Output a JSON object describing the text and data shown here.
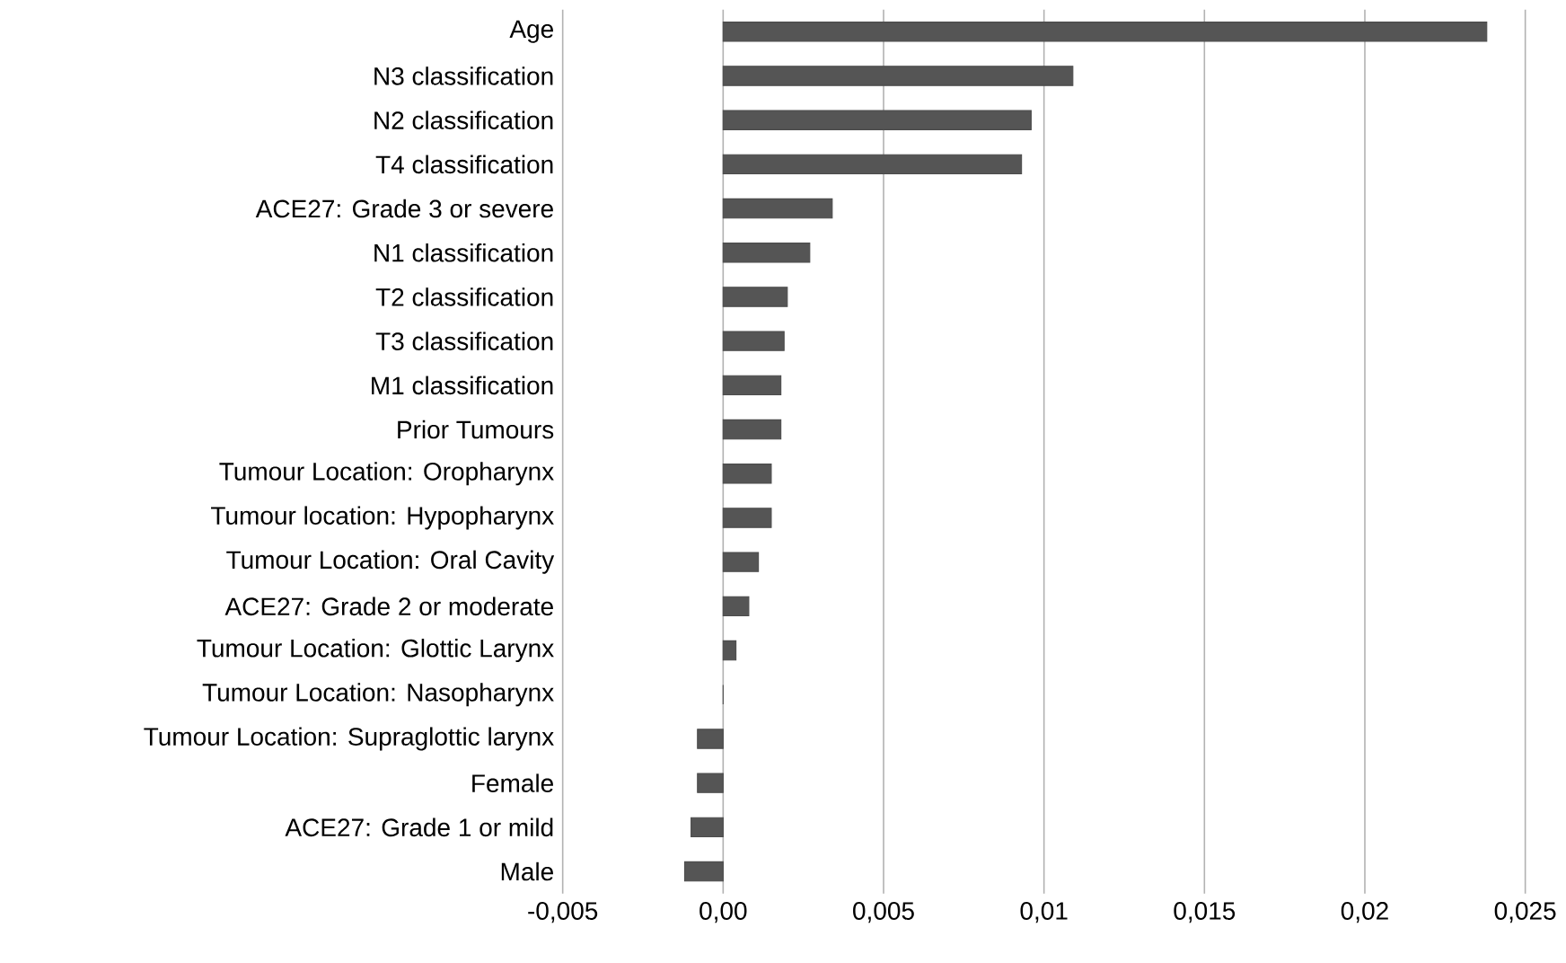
{
  "chart_data": {
    "type": "bar",
    "orientation": "horizontal",
    "categories": [
      "Age",
      "N3 classification",
      "N2 classification",
      "T4 classification",
      "ACE27: Grade 3 or severe",
      "N1 classification",
      "T2 classification",
      "T3 classification",
      "M1 classification",
      "Prior Tumours",
      "Tumour Location: Oropharynx",
      "Tumour location: Hypopharynx",
      "Tumour Location: Oral Cavity",
      "ACE27: Grade 2 or moderate",
      "Tumour Location: Glottic Larynx",
      "Tumour Location: Nasopharynx",
      "Tumour Location: Supraglottic larynx",
      "Female",
      "ACE27: Grade 1 or mild",
      "Male"
    ],
    "values": [
      0.0238,
      0.0109,
      0.0096,
      0.0093,
      0.0034,
      0.0027,
      0.002,
      0.0019,
      0.0018,
      0.0018,
      0.0015,
      0.0015,
      0.0011,
      0.0008,
      0.0004,
      0,
      -0.0008,
      -0.0008,
      -0.001,
      -0.0012
    ],
    "color": "#555555",
    "xlim": [
      -0.005,
      0.025
    ],
    "xticks": [
      {
        "value": -0.005,
        "label": "-0,005"
      },
      {
        "value": 0,
        "label": "0,00"
      },
      {
        "value": 0.005,
        "label": "0,005"
      },
      {
        "value": 0.01,
        "label": "0,01"
      },
      {
        "value": 0.015,
        "label": "0,015"
      },
      {
        "value": 0.02,
        "label": "0,02"
      },
      {
        "value": 0.025,
        "label": "0,025"
      }
    ],
    "grid": "x"
  }
}
